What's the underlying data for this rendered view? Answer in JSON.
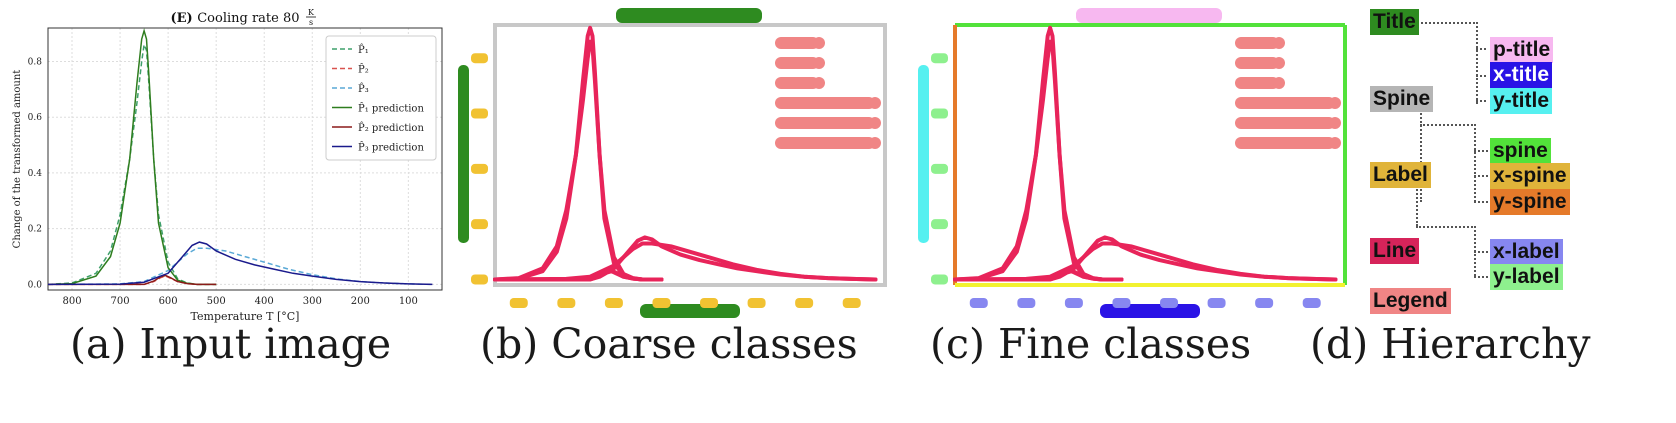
{
  "captions": [
    "(a) Input image",
    "(b) Coarse classes",
    "(c) Fine classes",
    "(d) Hierarchy"
  ],
  "input_chart": {
    "title_bold": "(E)",
    "title_text": "Cooling rate 80",
    "title_unit_num": "K",
    "title_unit_den": "s",
    "xlabel": "Temperature T [°C]",
    "ylabel": "Change of the transformed amount",
    "xticks": [
      "800",
      "700",
      "600",
      "500",
      "400",
      "300",
      "200",
      "100"
    ],
    "yticks": [
      "0.0",
      "0.2",
      "0.4",
      "0.6",
      "0.8"
    ],
    "legend": [
      {
        "label": "P̂₁",
        "color": "#3fa06b",
        "dash": true
      },
      {
        "label": "P̂₂",
        "color": "#d9534f",
        "dash": true
      },
      {
        "label": "P̂₃",
        "color": "#5aa9d6",
        "dash": true
      },
      {
        "label": "P̂₁ prediction",
        "color": "#2e7d1e",
        "dash": false
      },
      {
        "label": "P̂₂ prediction",
        "color": "#8b1a1a",
        "dash": false
      },
      {
        "label": "P̂₃ prediction",
        "color": "#1a1a8c",
        "dash": false
      }
    ]
  },
  "chart_data": {
    "type": "line",
    "title": "(E) Cooling rate 80 K/s",
    "xlabel": "Temperature T [°C]",
    "ylabel": "Change of the transformed amount",
    "xlim": [
      850,
      30
    ],
    "ylim": [
      -0.02,
      0.92
    ],
    "grid": true,
    "legend_position": "top-right",
    "series": [
      {
        "name": "P̂₁",
        "x": [
          850,
          800,
          750,
          720,
          700,
          680,
          665,
          655,
          650,
          645,
          640,
          630,
          620,
          600,
          580,
          560,
          540,
          500
        ],
        "y": [
          0,
          0.005,
          0.04,
          0.12,
          0.25,
          0.45,
          0.65,
          0.8,
          0.86,
          0.84,
          0.72,
          0.45,
          0.25,
          0.08,
          0.02,
          0.005,
          0,
          0
        ]
      },
      {
        "name": "P̂₂",
        "x": [
          850,
          650,
          630,
          615,
          605,
          595,
          580,
          560,
          540,
          500
        ],
        "y": [
          0,
          0,
          0.01,
          0.025,
          0.03,
          0.022,
          0.01,
          0.003,
          0,
          0
        ]
      },
      {
        "name": "P̂₃",
        "x": [
          850,
          700,
          650,
          600,
          560,
          540,
          520,
          480,
          440,
          400,
          350,
          300,
          250,
          200,
          150,
          100,
          50
        ],
        "y": [
          0,
          0.002,
          0.01,
          0.05,
          0.11,
          0.13,
          0.13,
          0.12,
          0.1,
          0.08,
          0.055,
          0.035,
          0.02,
          0.01,
          0.005,
          0.002,
          0
        ]
      },
      {
        "name": "P̂₁ prediction",
        "x": [
          850,
          800,
          750,
          720,
          700,
          680,
          665,
          655,
          650,
          645,
          640,
          630,
          620,
          600,
          580,
          560,
          540,
          500
        ],
        "y": [
          0,
          0.003,
          0.03,
          0.1,
          0.22,
          0.45,
          0.72,
          0.88,
          0.91,
          0.88,
          0.75,
          0.45,
          0.22,
          0.06,
          0.015,
          0.004,
          0,
          0
        ]
      },
      {
        "name": "P̂₂ prediction",
        "x": [
          850,
          650,
          630,
          615,
          605,
          595,
          580,
          560,
          540,
          500
        ],
        "y": [
          0,
          0,
          0.012,
          0.028,
          0.032,
          0.024,
          0.01,
          0.003,
          0,
          0
        ]
      },
      {
        "name": "P̂₃ prediction",
        "x": [
          850,
          700,
          650,
          600,
          570,
          550,
          535,
          520,
          500,
          460,
          420,
          380,
          340,
          300,
          250,
          200,
          150,
          100,
          50
        ],
        "y": [
          0,
          0.001,
          0.008,
          0.04,
          0.1,
          0.14,
          0.152,
          0.145,
          0.12,
          0.09,
          0.07,
          0.055,
          0.04,
          0.03,
          0.018,
          0.01,
          0.005,
          0.002,
          0
        ]
      }
    ]
  },
  "hierarchy": {
    "nodes": [
      {
        "label": "Title",
        "bg": "#2e8b20",
        "fg": "#111111"
      },
      {
        "label": "Spine",
        "bg": "#b5b5b5",
        "fg": "#111111"
      },
      {
        "label": "Label",
        "bg": "#e0b43a",
        "fg": "#111111"
      },
      {
        "label": "Line",
        "bg": "#d6245a",
        "fg": "#111111"
      },
      {
        "label": "Legend",
        "bg": "#f08585",
        "fg": "#111111"
      }
    ],
    "children": [
      {
        "label": "p-title",
        "bg": "#f7b8f0",
        "fg": "#111111"
      },
      {
        "label": "x-title",
        "bg": "#2a13e6",
        "fg": "#ffffff"
      },
      {
        "label": "y-title",
        "bg": "#56f0f0",
        "fg": "#111111"
      },
      {
        "label": "spine",
        "bg": "#52e23a",
        "fg": "#111111"
      },
      {
        "label": "x-spine",
        "bg": "#e0b43a",
        "fg": "#111111"
      },
      {
        "label": "y-spine",
        "bg": "#e57a2a",
        "fg": "#111111"
      },
      {
        "label": "x-label",
        "bg": "#8787f0",
        "fg": "#111111"
      },
      {
        "label": "y-label",
        "bg": "#8ef08e",
        "fg": "#111111"
      }
    ]
  },
  "colors": {
    "title_green": "#2e8b20",
    "label_yellow": "#f1c232",
    "line_red": "#e8245a",
    "legend_salmon": "#f08585",
    "spine_gray": "#c8c8c8",
    "spine_green": "#52e23a",
    "y_spine_orange": "#e57a2a",
    "x_spine_yellow": "#f2f230",
    "p_title_pink": "#f7b8f0",
    "x_title_blue": "#2a13e6",
    "y_title_cyan": "#56f0f0",
    "x_label_purple": "#8787f0",
    "y_label_green": "#8ef08e"
  }
}
